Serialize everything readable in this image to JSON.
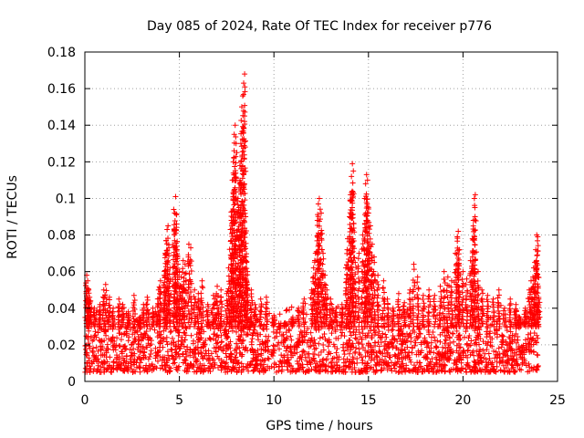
{
  "chart_data": {
    "type": "scatter",
    "title": "Day 085 of 2024, Rate Of TEC Index for receiver p776",
    "xlabel": "GPS time / hours",
    "ylabel": "ROTI / TECUs",
    "xlim": [
      0,
      25
    ],
    "ylim": [
      0,
      0.18
    ],
    "x_ticks": [
      0,
      5,
      10,
      15,
      20,
      25
    ],
    "x_tick_labels": [
      "0",
      "5",
      "10",
      "15",
      "20",
      "25"
    ],
    "y_ticks": [
      0,
      0.02,
      0.04,
      0.06,
      0.08,
      0.1,
      0.12,
      0.14,
      0.16,
      0.18
    ],
    "y_tick_labels": [
      "0",
      "0.02",
      "0.04",
      "0.06",
      "0.08",
      "0.1",
      "0.12",
      "0.14",
      "0.16",
      "0.18"
    ],
    "grid": true,
    "marker": "+",
    "color": "#ff0000",
    "series": [
      {
        "name": "ROTI",
        "points": [
          [
            0.1,
            0.058
          ],
          [
            0.15,
            0.055
          ],
          [
            0.2,
            0.05
          ],
          [
            0.25,
            0.046
          ],
          [
            0.3,
            0.044
          ],
          [
            0.5,
            0.04
          ],
          [
            0.8,
            0.042
          ],
          [
            1.0,
            0.05
          ],
          [
            1.1,
            0.053
          ],
          [
            1.3,
            0.046
          ],
          [
            1.5,
            0.04
          ],
          [
            1.8,
            0.045
          ],
          [
            2.0,
            0.042
          ],
          [
            2.3,
            0.038
          ],
          [
            2.6,
            0.047
          ],
          [
            2.9,
            0.035
          ],
          [
            3.1,
            0.042
          ],
          [
            3.3,
            0.046
          ],
          [
            3.6,
            0.04
          ],
          [
            3.9,
            0.05
          ],
          [
            4.0,
            0.055
          ],
          [
            4.2,
            0.058
          ],
          [
            4.25,
            0.07
          ],
          [
            4.3,
            0.077
          ],
          [
            4.35,
            0.083
          ],
          [
            4.4,
            0.085
          ],
          [
            4.5,
            0.062
          ],
          [
            4.7,
            0.094
          ],
          [
            4.75,
            0.092
          ],
          [
            4.8,
            0.101
          ],
          [
            4.85,
            0.086
          ],
          [
            4.9,
            0.068
          ],
          [
            5.0,
            0.06
          ],
          [
            5.1,
            0.057
          ],
          [
            5.2,
            0.066
          ],
          [
            5.3,
            0.064
          ],
          [
            5.5,
            0.075
          ],
          [
            5.6,
            0.073
          ],
          [
            5.8,
            0.05
          ],
          [
            6.0,
            0.048
          ],
          [
            6.2,
            0.055
          ],
          [
            6.5,
            0.042
          ],
          [
            6.8,
            0.047
          ],
          [
            7.0,
            0.052
          ],
          [
            7.2,
            0.05
          ],
          [
            7.5,
            0.048
          ],
          [
            7.6,
            0.062
          ],
          [
            7.7,
            0.083
          ],
          [
            7.75,
            0.088
          ],
          [
            7.8,
            0.11
          ],
          [
            7.85,
            0.12
          ],
          [
            7.9,
            0.135
          ],
          [
            7.95,
            0.14
          ],
          [
            8.0,
            0.13
          ],
          [
            8.1,
            0.1
          ],
          [
            8.15,
            0.095
          ],
          [
            8.2,
            0.118
          ],
          [
            8.25,
            0.13
          ],
          [
            8.3,
            0.15
          ],
          [
            8.35,
            0.156
          ],
          [
            8.4,
            0.163
          ],
          [
            8.45,
            0.168
          ],
          [
            8.5,
            0.09
          ],
          [
            8.55,
            0.065
          ],
          [
            8.6,
            0.06
          ],
          [
            8.8,
            0.05
          ],
          [
            9.0,
            0.042
          ],
          [
            9.3,
            0.045
          ],
          [
            9.6,
            0.046
          ],
          [
            10.0,
            0.036
          ],
          [
            10.3,
            0.03
          ],
          [
            10.6,
            0.032
          ],
          [
            11.0,
            0.035
          ],
          [
            11.3,
            0.04
          ],
          [
            11.6,
            0.045
          ],
          [
            12.0,
            0.05
          ],
          [
            12.1,
            0.062
          ],
          [
            12.2,
            0.07
          ],
          [
            12.3,
            0.088
          ],
          [
            12.35,
            0.097
          ],
          [
            12.4,
            0.1
          ],
          [
            12.5,
            0.092
          ],
          [
            12.6,
            0.07
          ],
          [
            12.7,
            0.058
          ],
          [
            12.8,
            0.05
          ],
          [
            13.0,
            0.045
          ],
          [
            13.3,
            0.04
          ],
          [
            13.6,
            0.042
          ],
          [
            13.8,
            0.062
          ],
          [
            13.9,
            0.078
          ],
          [
            14.0,
            0.09
          ],
          [
            14.05,
            0.102
          ],
          [
            14.1,
            0.112
          ],
          [
            14.15,
            0.119
          ],
          [
            14.2,
            0.115
          ],
          [
            14.3,
            0.065
          ],
          [
            14.5,
            0.07
          ],
          [
            14.7,
            0.08
          ],
          [
            14.8,
            0.1
          ],
          [
            14.85,
            0.108
          ],
          [
            14.9,
            0.113
          ],
          [
            14.95,
            0.11
          ],
          [
            15.0,
            0.092
          ],
          [
            15.1,
            0.085
          ],
          [
            15.2,
            0.075
          ],
          [
            15.3,
            0.068
          ],
          [
            15.5,
            0.058
          ],
          [
            15.8,
            0.055
          ],
          [
            16.0,
            0.045
          ],
          [
            16.3,
            0.04
          ],
          [
            16.6,
            0.048
          ],
          [
            16.9,
            0.043
          ],
          [
            17.2,
            0.05
          ],
          [
            17.4,
            0.064
          ],
          [
            17.6,
            0.057
          ],
          [
            17.9,
            0.047
          ],
          [
            18.2,
            0.05
          ],
          [
            18.5,
            0.047
          ],
          [
            18.8,
            0.052
          ],
          [
            19.0,
            0.06
          ],
          [
            19.2,
            0.057
          ],
          [
            19.4,
            0.055
          ],
          [
            19.6,
            0.07
          ],
          [
            19.7,
            0.079
          ],
          [
            19.75,
            0.082
          ],
          [
            19.8,
            0.072
          ],
          [
            20.0,
            0.06
          ],
          [
            20.2,
            0.056
          ],
          [
            20.4,
            0.066
          ],
          [
            20.5,
            0.078
          ],
          [
            20.55,
            0.088
          ],
          [
            20.6,
            0.1
          ],
          [
            20.65,
            0.102
          ],
          [
            20.8,
            0.06
          ],
          [
            21.0,
            0.05
          ],
          [
            21.3,
            0.047
          ],
          [
            21.6,
            0.045
          ],
          [
            21.9,
            0.05
          ],
          [
            22.2,
            0.04
          ],
          [
            22.5,
            0.045
          ],
          [
            22.8,
            0.042
          ],
          [
            23.0,
            0.035
          ],
          [
            23.3,
            0.04
          ],
          [
            23.5,
            0.05
          ],
          [
            23.6,
            0.055
          ],
          [
            23.7,
            0.057
          ],
          [
            23.8,
            0.065
          ],
          [
            23.85,
            0.072
          ],
          [
            23.9,
            0.08
          ],
          [
            23.95,
            0.079
          ],
          [
            24.0,
            0.045
          ]
        ]
      }
    ],
    "background_band": {
      "description": "dense cloud of ROTI samples spanning the full day",
      "x_range": [
        0,
        24
      ],
      "y_range": [
        0.005,
        0.035
      ]
    }
  }
}
